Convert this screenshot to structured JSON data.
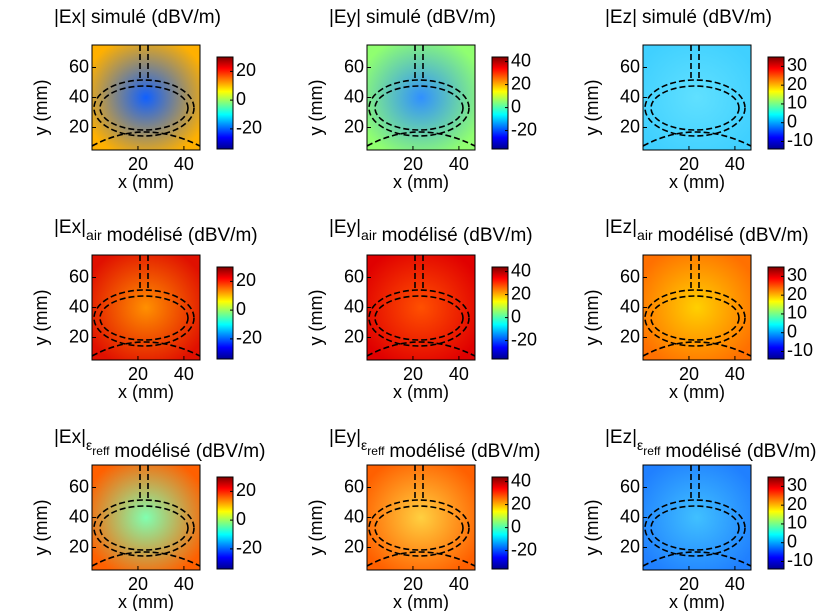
{
  "chart_data": [
    {
      "type": "heatmap",
      "title_prefix": "|Ex|",
      "title_suffix": "simulé (dBV/m)",
      "xlabel": "x (mm)",
      "ylabel": "y (mm)",
      "xlim": [
        0,
        47
      ],
      "ylim": [
        5,
        75
      ],
      "xticks": [
        20,
        40
      ],
      "yticks": [
        20,
        40,
        60
      ],
      "clim": [
        -34,
        30
      ],
      "cticks": [
        20,
        0,
        -20
      ]
    },
    {
      "type": "heatmap",
      "title_prefix": "|Ey|",
      "title_suffix": "simulé (dBV/m)",
      "xlabel": "x (mm)",
      "ylabel": "y (mm)",
      "xlim": [
        0,
        47
      ],
      "ylim": [
        5,
        75
      ],
      "xticks": [
        20,
        40
      ],
      "yticks": [
        20,
        40,
        60
      ],
      "clim": [
        -36,
        44
      ],
      "cticks": [
        40,
        20,
        0,
        -20
      ]
    },
    {
      "type": "heatmap",
      "title_prefix": "|Ez|",
      "title_suffix": "simulé (dBV/m)",
      "xlabel": "x (mm)",
      "ylabel": "y (mm)",
      "xlim": [
        0,
        47
      ],
      "ylim": [
        5,
        75
      ],
      "xticks": [
        20,
        40
      ],
      "yticks": [
        20,
        40,
        60
      ],
      "clim": [
        -14,
        35
      ],
      "cticks": [
        30,
        20,
        10,
        0,
        -10
      ]
    },
    {
      "type": "heatmap",
      "title_prefix": "|Ex|",
      "title_subscript": "air",
      "title_suffix": "modélisé (dBV/m)",
      "xlabel": "x (mm)",
      "ylabel": "y (mm)",
      "xlim": [
        0,
        47
      ],
      "ylim": [
        5,
        75
      ],
      "xticks": [
        20,
        40
      ],
      "yticks": [
        20,
        40,
        60
      ],
      "clim": [
        -34,
        30
      ],
      "cticks": [
        20,
        0,
        -20
      ]
    },
    {
      "type": "heatmap",
      "title_prefix": "|Ey|",
      "title_subscript": "air",
      "title_suffix": "modélisé (dBV/m)",
      "xlabel": "x (mm)",
      "ylabel": "y (mm)",
      "xlim": [
        0,
        47
      ],
      "ylim": [
        5,
        75
      ],
      "xticks": [
        20,
        40
      ],
      "yticks": [
        20,
        40,
        60
      ],
      "clim": [
        -36,
        44
      ],
      "cticks": [
        40,
        20,
        0,
        -20
      ]
    },
    {
      "type": "heatmap",
      "title_prefix": "|Ez|",
      "title_subscript": "air",
      "title_suffix": "modélisé (dBV/m)",
      "xlabel": "x (mm)",
      "ylabel": "y (mm)",
      "xlim": [
        0,
        47
      ],
      "ylim": [
        5,
        75
      ],
      "xticks": [
        20,
        40
      ],
      "yticks": [
        20,
        40,
        60
      ],
      "clim": [
        -14,
        35
      ],
      "cticks": [
        30,
        20,
        10,
        0,
        -10
      ]
    },
    {
      "type": "heatmap",
      "title_prefix": "|Ex|",
      "title_subscript": "ε",
      "title_subsubscript": "reff",
      "title_suffix": "modélisé (dBV/m)",
      "xlabel": "x (mm)",
      "ylabel": "y (mm)",
      "xlim": [
        0,
        47
      ],
      "ylim": [
        5,
        75
      ],
      "xticks": [
        20,
        40
      ],
      "yticks": [
        20,
        40,
        60
      ],
      "clim": [
        -34,
        30
      ],
      "cticks": [
        20,
        0,
        -20
      ]
    },
    {
      "type": "heatmap",
      "title_prefix": "|Ey|",
      "title_subscript": "ε",
      "title_subsubscript": "reff",
      "title_suffix": "modélisé (dBV/m)",
      "xlabel": "x (mm)",
      "ylabel": "y (mm)",
      "xlim": [
        0,
        47
      ],
      "ylim": [
        5,
        75
      ],
      "xticks": [
        20,
        40
      ],
      "yticks": [
        20,
        40,
        60
      ],
      "clim": [
        -36,
        44
      ],
      "cticks": [
        40,
        20,
        0,
        -20
      ]
    },
    {
      "type": "heatmap",
      "title_prefix": "|Ez|",
      "title_subscript": "ε",
      "title_subsubscript": "reff",
      "title_suffix": "modélisé (dBV/m)",
      "xlabel": "x (mm)",
      "ylabel": "y (mm)",
      "xlim": [
        0,
        47
      ],
      "ylim": [
        5,
        75
      ],
      "xticks": [
        20,
        40
      ],
      "yticks": [
        20,
        40,
        60
      ],
      "clim": [
        -14,
        35
      ],
      "cticks": [
        30,
        20,
        10,
        0,
        -10
      ]
    }
  ]
}
